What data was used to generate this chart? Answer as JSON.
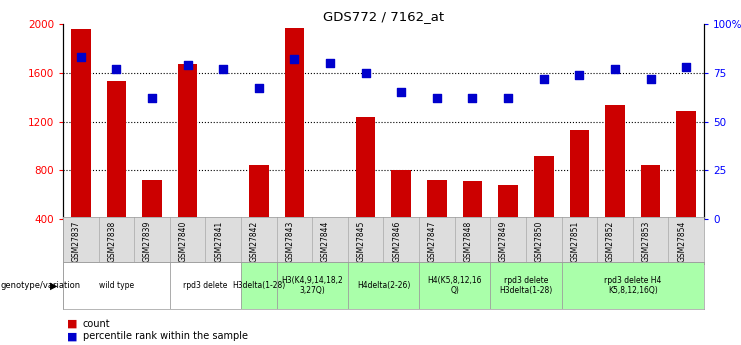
{
  "title": "GDS772 / 7162_at",
  "samples": [
    "GSM27837",
    "GSM27838",
    "GSM27839",
    "GSM27840",
    "GSM27841",
    "GSM27842",
    "GSM27843",
    "GSM27844",
    "GSM27845",
    "GSM27846",
    "GSM27847",
    "GSM27848",
    "GSM27849",
    "GSM27850",
    "GSM27851",
    "GSM27852",
    "GSM27853",
    "GSM27854"
  ],
  "counts": [
    1960,
    1530,
    720,
    1670,
    390,
    840,
    1970,
    390,
    1240,
    800,
    720,
    710,
    680,
    920,
    1130,
    1340,
    840,
    1290
  ],
  "percentile_ranks": [
    83,
    77,
    62,
    79,
    77,
    67,
    82,
    80,
    75,
    65,
    62,
    62,
    62,
    72,
    74,
    77,
    72,
    78
  ],
  "y_min": 400,
  "y_max": 2000,
  "y_ticks": [
    400,
    800,
    1200,
    1600,
    2000
  ],
  "y_right_ticks": [
    0,
    25,
    50,
    75,
    100
  ],
  "y_right_labels": [
    "0",
    "25",
    "50",
    "75",
    "100%"
  ],
  "bar_color": "#cc0000",
  "dot_color": "#0000cc",
  "group_names_actual": [
    {
      "label": "wild type",
      "start": 0,
      "end": 3,
      "color": "#ffffff"
    },
    {
      "label": "rpd3 delete",
      "start": 3,
      "end": 5,
      "color": "#ffffff"
    },
    {
      "label": "H3delta(1-28)",
      "start": 5,
      "end": 6,
      "color": "#aaffaa"
    },
    {
      "label": "H3(K4,9,14,18,2\n3,27Q)",
      "start": 6,
      "end": 8,
      "color": "#aaffaa"
    },
    {
      "label": "H4delta(2-26)",
      "start": 8,
      "end": 10,
      "color": "#aaffaa"
    },
    {
      "label": "H4(K5,8,12,16\nQ)",
      "start": 10,
      "end": 12,
      "color": "#aaffaa"
    },
    {
      "label": "rpd3 delete\nH3delta(1-28)",
      "start": 12,
      "end": 14,
      "color": "#aaffaa"
    },
    {
      "label": "rpd3 delete H4\nK5,8,12,16Q)",
      "start": 14,
      "end": 18,
      "color": "#aaffaa"
    }
  ],
  "legend_count_label": "count",
  "legend_pct_label": "percentile rank within the sample",
  "bg_color": "#ffffff",
  "dot_size": 40,
  "bar_bottom": 400,
  "xlabel_label": "genotype/variation"
}
